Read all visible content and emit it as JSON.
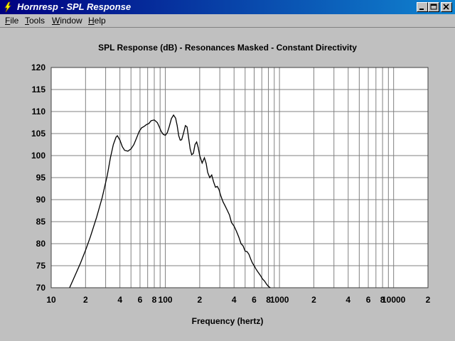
{
  "window": {
    "title": "Hornresp - SPL Response"
  },
  "menu": {
    "file": {
      "u": "F",
      "rest": "ile"
    },
    "tools": {
      "u": "T",
      "rest": "ools"
    },
    "window": {
      "u": "W",
      "rest": "indow"
    },
    "help": {
      "u": "H",
      "rest": "elp"
    }
  },
  "colors": {
    "titlebar_start": "#000080",
    "titlebar_end": "#1084d0",
    "plot_bg": "#ffffff",
    "grid": "#808080",
    "curve": "#000000",
    "window_bg": "#c0c0c0"
  },
  "chart_data": {
    "type": "line",
    "title": "SPL Response (dB) - Resonances Masked - Constant Directivity",
    "xlabel": "Frequency (hertz)",
    "ylabel": "",
    "xscale": "log",
    "xlim": [
      10,
      20000
    ],
    "ylim": [
      70,
      120
    ],
    "grid": true,
    "x_tick_labels": [
      {
        "value": 10,
        "label": "10"
      },
      {
        "value": 20,
        "label": "2"
      },
      {
        "value": 40,
        "label": "4"
      },
      {
        "value": 60,
        "label": "6"
      },
      {
        "value": 80,
        "label": "8"
      },
      {
        "value": 100,
        "label": "100"
      },
      {
        "value": 200,
        "label": "2"
      },
      {
        "value": 400,
        "label": "4"
      },
      {
        "value": 600,
        "label": "6"
      },
      {
        "value": 800,
        "label": "8"
      },
      {
        "value": 1000,
        "label": "1000"
      },
      {
        "value": 2000,
        "label": "2"
      },
      {
        "value": 4000,
        "label": "4"
      },
      {
        "value": 6000,
        "label": "6"
      },
      {
        "value": 8000,
        "label": "8"
      },
      {
        "value": 10000,
        "label": "10000"
      },
      {
        "value": 20000,
        "label": "2"
      }
    ],
    "y_ticks": [
      70,
      75,
      80,
      85,
      90,
      95,
      100,
      105,
      110,
      115,
      120
    ],
    "series": [
      {
        "color": "#000000",
        "x": [
          14.5,
          16,
          18,
          20,
          22,
          25,
          28,
          31,
          33,
          35,
          37,
          38,
          40,
          42,
          44,
          47,
          50,
          53,
          56,
          59,
          62,
          65,
          68,
          72,
          75,
          80,
          85,
          88,
          92,
          96,
          100,
          104,
          108,
          113,
          118,
          123,
          127,
          131,
          135,
          139,
          144,
          150,
          155,
          160,
          165,
          170,
          176,
          182,
          188,
          194,
          200,
          210,
          220,
          228,
          235,
          245,
          255,
          265,
          275,
          285,
          295,
          305,
          320,
          335,
          350,
          365,
          380,
          400,
          420,
          440,
          460,
          480,
          500,
          520,
          540,
          560,
          580,
          600,
          620,
          650,
          680,
          710,
          740,
          770,
          800,
          830,
          860,
          900,
          940,
          980,
          1000
        ],
        "y": [
          70,
          72.5,
          75.5,
          78.5,
          81.5,
          86,
          90.5,
          95.5,
          99.5,
          102.5,
          104.2,
          104.5,
          103.5,
          102,
          101.2,
          101,
          101.5,
          102.5,
          104,
          105.5,
          106.3,
          106.6,
          107,
          107.3,
          107.9,
          108.1,
          107.5,
          106.7,
          105.5,
          104.8,
          104.6,
          105.2,
          106.5,
          108.4,
          109.2,
          108.5,
          106.8,
          104.5,
          103.5,
          103.6,
          105,
          106.8,
          106.5,
          104,
          101.5,
          100.2,
          100.5,
          102.5,
          103.1,
          101.8,
          100,
          98.3,
          99.5,
          98.2,
          96.2,
          95,
          95.6,
          94,
          92.8,
          93,
          92.3,
          91,
          89.5,
          88.5,
          87.5,
          86.5,
          84.8,
          84,
          82.8,
          81.5,
          80,
          79.5,
          78.3,
          78.2,
          77.6,
          76.5,
          75.6,
          75,
          74.3,
          73.5,
          72.8,
          72,
          71.5,
          70.8,
          70.3,
          70,
          69.7,
          69.4,
          69.2,
          69,
          69
        ]
      }
    ]
  }
}
